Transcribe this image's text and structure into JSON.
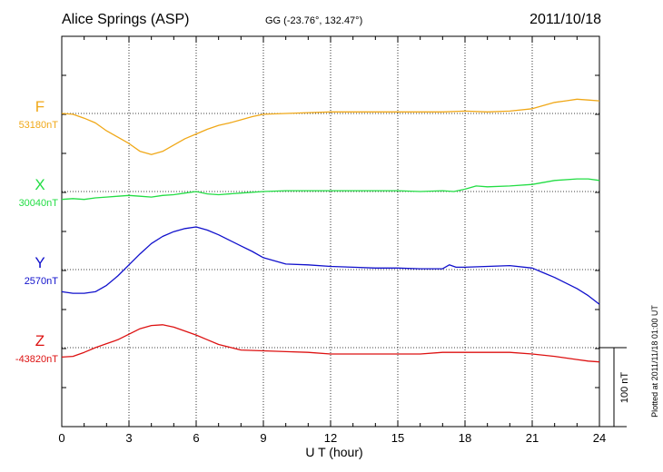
{
  "header": {
    "station": "Alice Springs (ASP)",
    "coords": "GG (-23.76°, 132.47°)",
    "date": "2011/10/18"
  },
  "side_note": "Plotted at 2011/11/18 01:00 UT",
  "chart_data": {
    "type": "line",
    "xlabel": "U T (hour)",
    "xlim": [
      0,
      24
    ],
    "xticks": [
      0,
      3,
      6,
      9,
      12,
      15,
      18,
      21,
      24
    ],
    "scale_bar": {
      "label": "100 nT",
      "value_nT": 100
    },
    "series": [
      {
        "key": "F",
        "name": "F",
        "baseline_label": "53180nT",
        "baseline": 53180,
        "color": "#f0a818",
        "x": [
          0,
          0.5,
          1,
          1.5,
          2,
          2.5,
          3,
          3.5,
          4,
          4.5,
          5,
          5.5,
          6,
          6.5,
          7,
          7.5,
          8,
          8.5,
          9,
          10,
          11,
          12,
          13,
          14,
          15,
          16,
          17,
          18,
          19,
          20,
          21,
          21.5,
          22,
          22.5,
          23,
          23.5,
          24
        ],
        "y": [
          53180,
          53179,
          53174,
          53168,
          53158,
          53150,
          53142,
          53132,
          53128,
          53132,
          53140,
          53148,
          53154,
          53160,
          53165,
          53168,
          53172,
          53176,
          53179,
          53180,
          53181,
          53182,
          53182,
          53182,
          53182,
          53182,
          53182,
          53183,
          53182,
          53183,
          53186,
          53190,
          53194,
          53196,
          53198,
          53197,
          53196
        ]
      },
      {
        "key": "X",
        "name": "X",
        "baseline_label": "30040nT",
        "baseline": 30040,
        "color": "#22dd44",
        "x": [
          0,
          0.5,
          1,
          1.5,
          2,
          2.5,
          3,
          3.5,
          4,
          4.5,
          5,
          5.5,
          6,
          6.5,
          7,
          8,
          9,
          10,
          11,
          12,
          13,
          14,
          15,
          16,
          17,
          17.5,
          18,
          18.5,
          19,
          20,
          21,
          22,
          23,
          23.5,
          24
        ],
        "y": [
          30030,
          30031,
          30030,
          30032,
          30033,
          30034,
          30035,
          30034,
          30033,
          30035,
          30036,
          30038,
          30040,
          30037,
          30036,
          30038,
          30040,
          30041,
          30041,
          30041,
          30041,
          30041,
          30041,
          30040,
          30041,
          30040,
          30043,
          30047,
          30046,
          30047,
          30049,
          30054,
          30056,
          30056,
          30054
        ]
      },
      {
        "key": "Y",
        "name": "Y",
        "baseline_label": "2570nT",
        "baseline": 2570,
        "color": "#1010cc",
        "x": [
          0,
          0.5,
          1,
          1.5,
          2,
          2.5,
          3,
          3.5,
          4,
          4.5,
          5,
          5.5,
          6,
          6.5,
          7,
          7.5,
          8,
          8.5,
          9,
          10,
          11,
          12,
          13,
          14,
          15,
          16,
          17,
          17.3,
          17.6,
          18,
          19,
          20,
          21,
          21.5,
          22,
          22.5,
          23,
          23.5,
          24
        ],
        "y": [
          2542,
          2540,
          2540,
          2542,
          2550,
          2562,
          2576,
          2590,
          2603,
          2612,
          2618,
          2622,
          2624,
          2620,
          2614,
          2607,
          2600,
          2593,
          2585,
          2577,
          2576,
          2574,
          2573,
          2572,
          2572,
          2571,
          2571,
          2576,
          2573,
          2573,
          2574,
          2575,
          2572,
          2566,
          2560,
          2553,
          2546,
          2537,
          2526
        ]
      },
      {
        "key": "Z",
        "name": "Z",
        "baseline_label": "-43820nT",
        "baseline": -43820,
        "color": "#dd1111",
        "x": [
          0,
          0.5,
          1,
          1.5,
          2,
          2.5,
          3,
          3.5,
          4,
          4.5,
          5,
          5.5,
          6,
          6.5,
          7,
          8,
          9,
          10,
          11,
          12,
          13,
          14,
          15,
          16,
          17,
          18,
          19,
          20,
          21,
          22,
          23,
          23.5,
          24
        ],
        "y": [
          -43832,
          -43831,
          -43826,
          -43820,
          -43815,
          -43810,
          -43803,
          -43796,
          -43792,
          -43791,
          -43794,
          -43799,
          -43804,
          -43810,
          -43816,
          -43823,
          -43824,
          -43825,
          -43826,
          -43828,
          -43828,
          -43828,
          -43828,
          -43828,
          -43826,
          -43826,
          -43826,
          -43826,
          -43828,
          -43831,
          -43835,
          -43837,
          -43838
        ]
      }
    ]
  }
}
